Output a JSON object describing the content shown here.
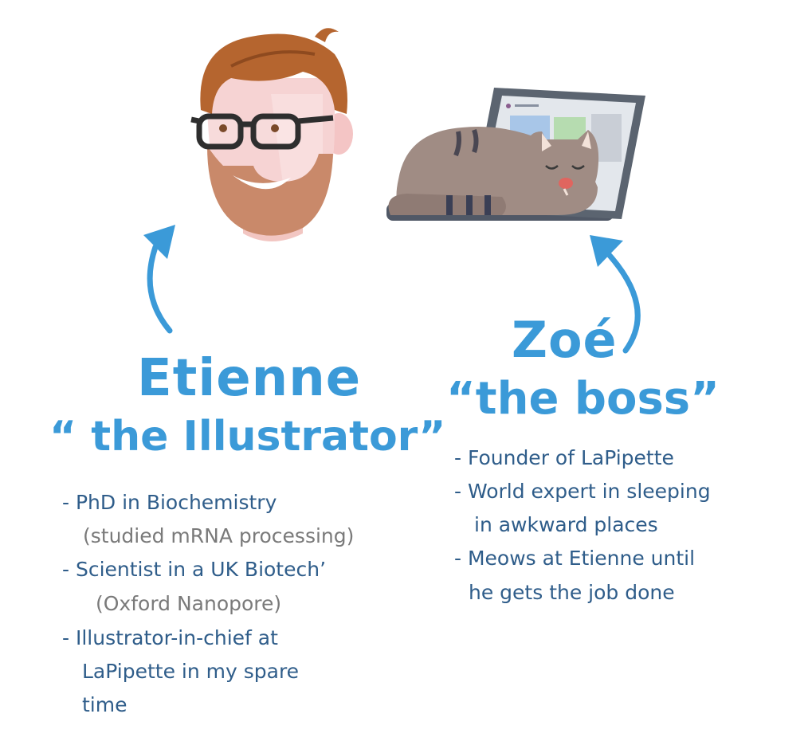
{
  "etienne": {
    "name": "Etienne",
    "nickname": "“ the Illustrator”",
    "bullets": [
      "- PhD in Biochemistry",
      "(studied mRNA processing)",
      "- Scientist in a UK Biotech’",
      "(Oxford Nanopore)",
      "- Illustrator-in-chief at",
      "LaPipette in my spare",
      "time"
    ]
  },
  "zoe": {
    "name": "Zoé",
    "nickname": "“the boss”",
    "bullets": [
      "- Founder of LaPipette",
      "- World expert in sleeping",
      "in awkward places",
      "- Meows at Etienne until",
      "he gets the job done"
    ]
  },
  "colors": {
    "accent": "#3b9ad8",
    "body_text": "#2f5d8a",
    "secondary_text": "#7a7a7a"
  },
  "icons": [
    "man-with-glasses-portrait",
    "sleeping-cat-on-laptop",
    "curved-arrow-up"
  ]
}
